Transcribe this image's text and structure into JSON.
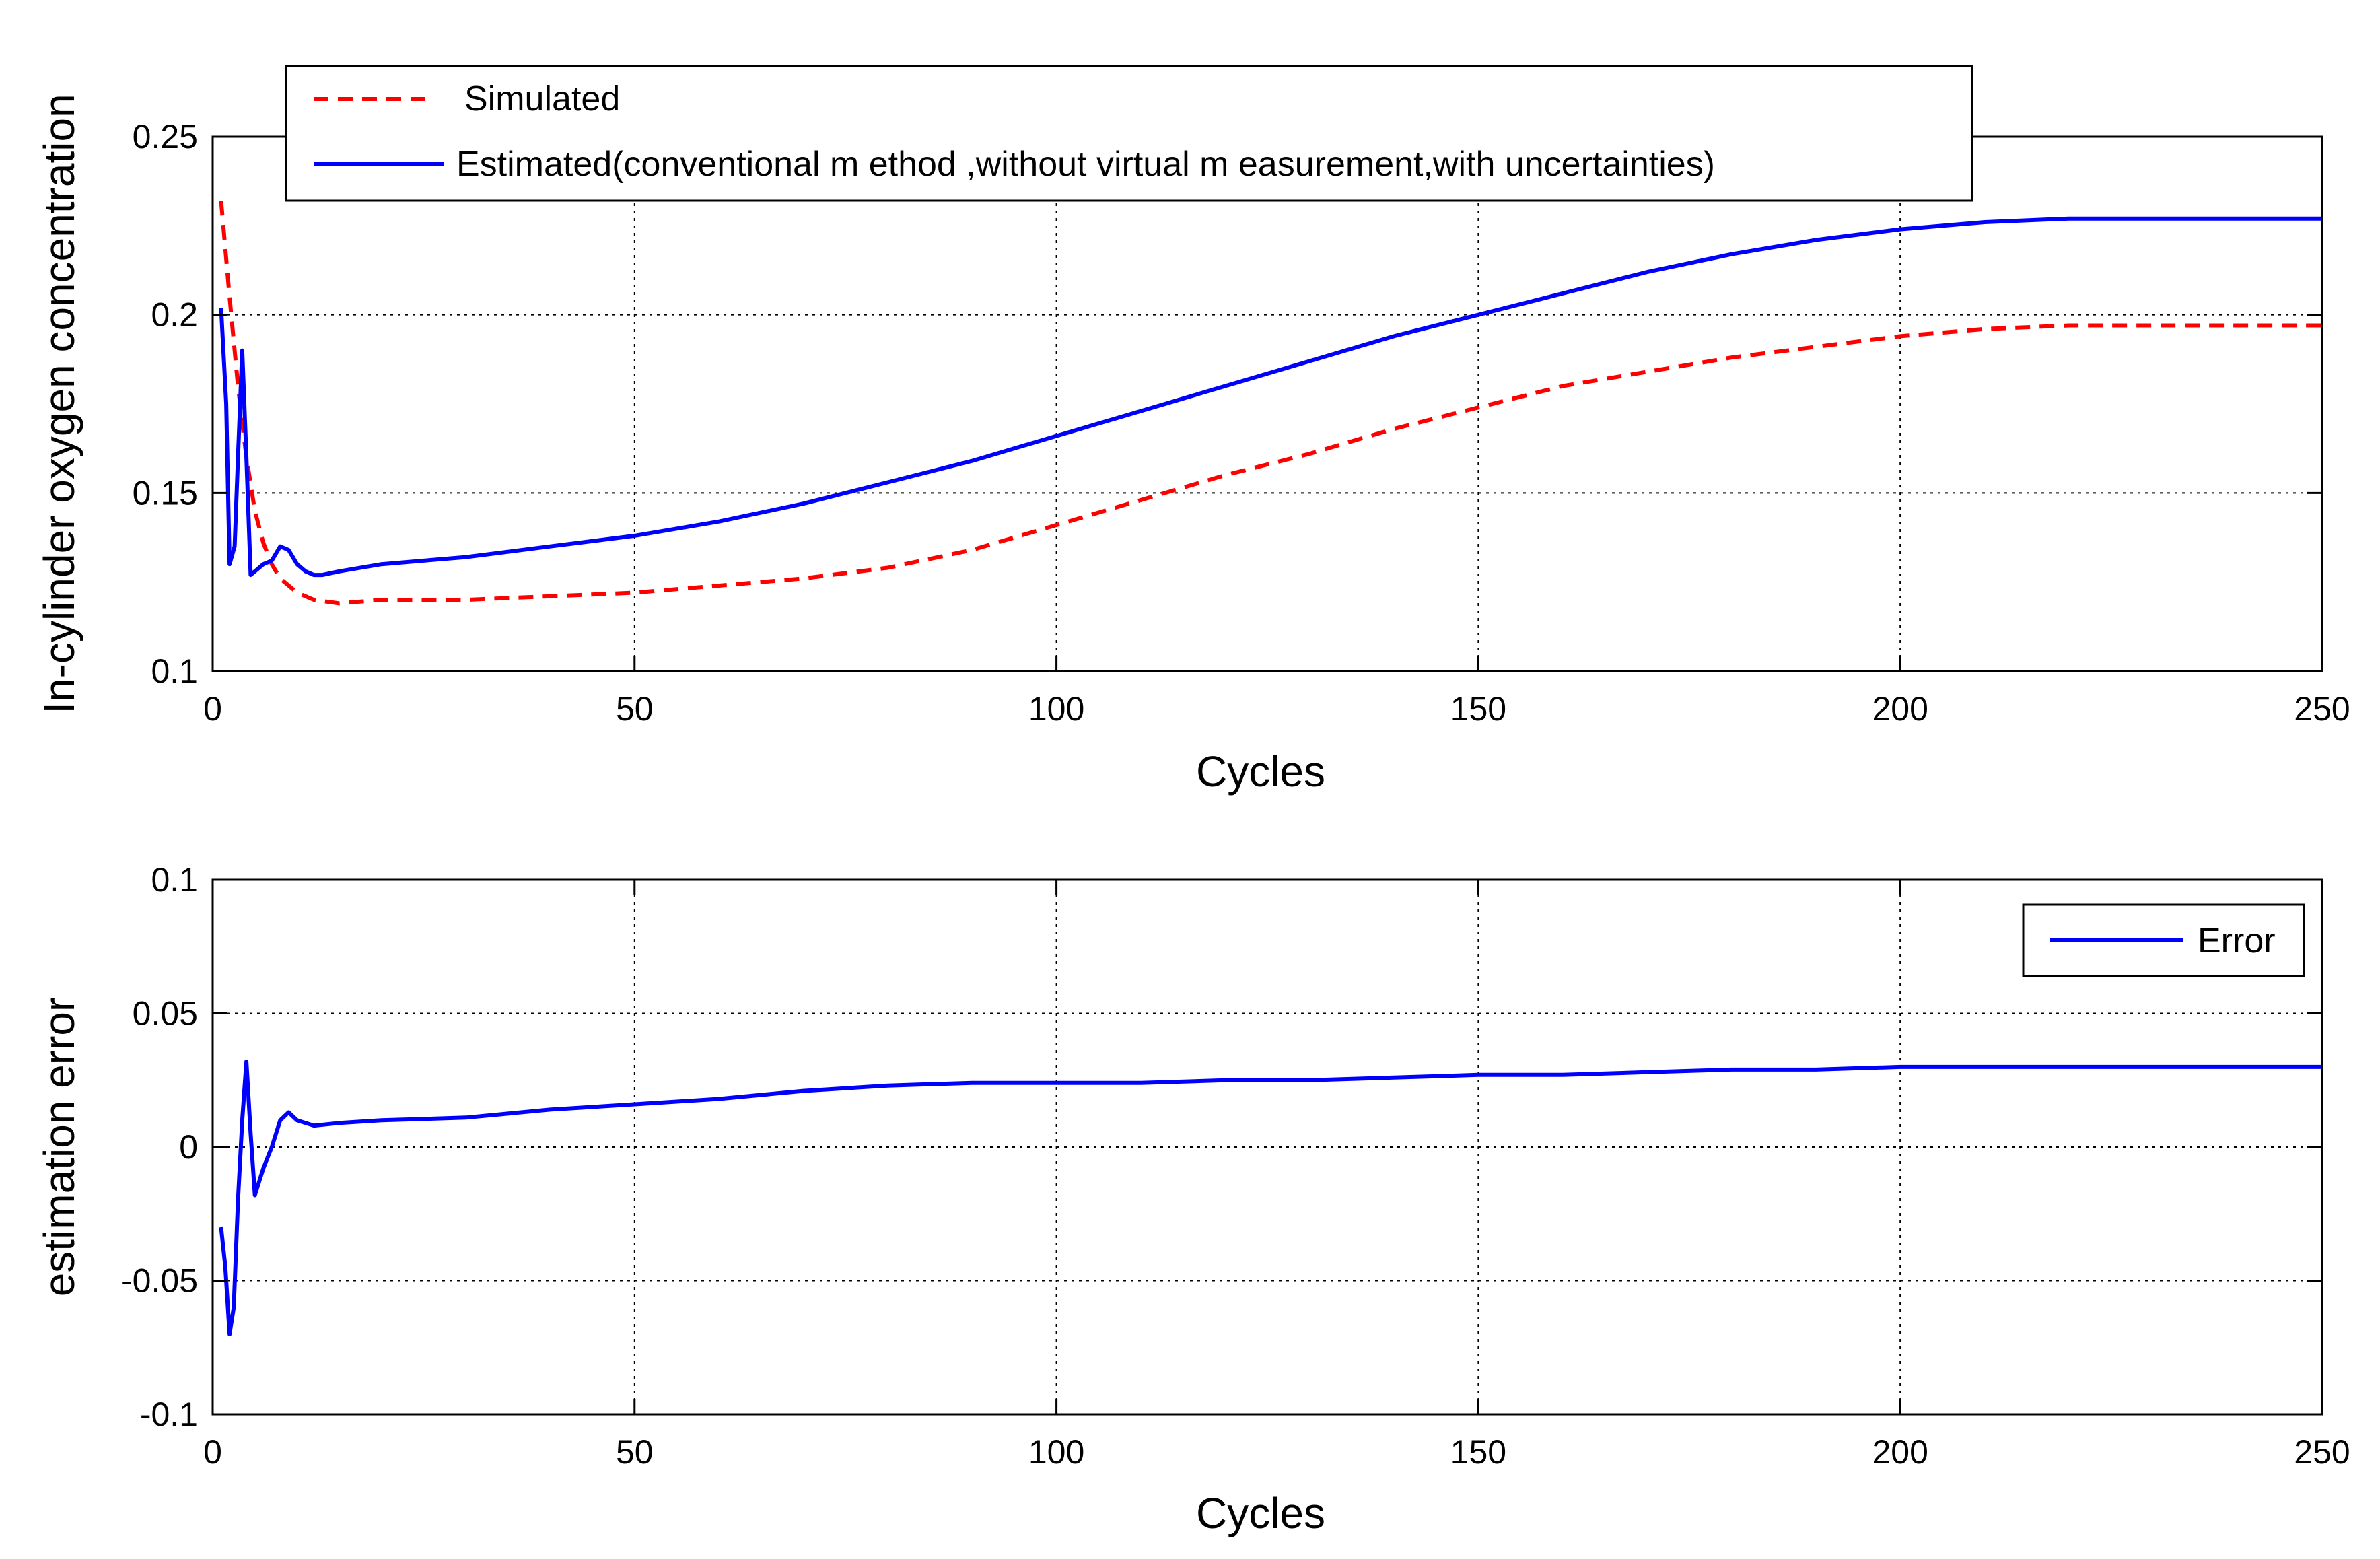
{
  "chart_data": [
    {
      "type": "line",
      "title": "",
      "xlabel": "Cycles",
      "ylabel": "In-cylinder oxygen concentration",
      "xlim": [
        0,
        250
      ],
      "ylim": [
        0.1,
        0.25
      ],
      "xticks": [
        0,
        50,
        100,
        150,
        200,
        250
      ],
      "yticks": [
        0.1,
        0.15,
        0.2,
        0.25
      ],
      "xtick_labels": [
        "0",
        "50",
        "100",
        "150",
        "200",
        "250"
      ],
      "ytick_labels": [
        "0.1",
        "0.15",
        "0.2",
        "0.25"
      ],
      "grid": true,
      "legend_position": "top",
      "series": [
        {
          "name": "Simulated",
          "color": "#ff0000",
          "style": "dashed",
          "x": [
            1,
            2,
            3,
            4,
            5,
            6,
            7,
            8,
            10,
            12,
            15,
            20,
            30,
            40,
            50,
            60,
            70,
            80,
            90,
            100,
            110,
            120,
            130,
            140,
            150,
            160,
            170,
            180,
            190,
            200,
            210,
            220,
            230,
            240,
            250
          ],
          "y": [
            0.232,
            0.205,
            0.18,
            0.16,
            0.145,
            0.136,
            0.13,
            0.126,
            0.122,
            0.12,
            0.119,
            0.12,
            0.12,
            0.121,
            0.122,
            0.124,
            0.126,
            0.129,
            0.134,
            0.141,
            0.148,
            0.155,
            0.161,
            0.168,
            0.174,
            0.18,
            0.184,
            0.188,
            0.191,
            0.194,
            0.196,
            0.197,
            0.197,
            0.197,
            0.197
          ]
        },
        {
          "name": "Estimated(conventional m ethod ,without virtual m easurement,with uncertainties)",
          "color": "#0000ff",
          "style": "solid",
          "x": [
            1,
            1.6,
            2,
            2.6,
            3,
            3.5,
            4,
            4.5,
            5,
            6,
            7,
            8,
            9,
            10,
            11,
            12,
            13,
            15,
            20,
            25,
            30,
            40,
            50,
            60,
            70,
            80,
            90,
            100,
            110,
            120,
            130,
            140,
            150,
            160,
            170,
            180,
            190,
            200,
            210,
            220,
            230,
            240,
            250
          ],
          "y": [
            0.202,
            0.175,
            0.13,
            0.135,
            0.16,
            0.19,
            0.16,
            0.127,
            0.128,
            0.13,
            0.131,
            0.135,
            0.134,
            0.13,
            0.128,
            0.127,
            0.127,
            0.128,
            0.13,
            0.131,
            0.132,
            0.135,
            0.138,
            0.142,
            0.147,
            0.153,
            0.159,
            0.166,
            0.173,
            0.18,
            0.187,
            0.194,
            0.2,
            0.206,
            0.212,
            0.217,
            0.221,
            0.224,
            0.226,
            0.227,
            0.227,
            0.227,
            0.227
          ]
        }
      ]
    },
    {
      "type": "line",
      "title": "",
      "xlabel": "Cycles",
      "ylabel": "estimation error",
      "xlim": [
        0,
        250
      ],
      "ylim": [
        -0.1,
        0.1
      ],
      "xticks": [
        0,
        50,
        100,
        150,
        200,
        250
      ],
      "yticks": [
        -0.1,
        -0.05,
        0,
        0.05,
        0.1
      ],
      "xtick_labels": [
        "0",
        "50",
        "100",
        "150",
        "200",
        "250"
      ],
      "ytick_labels": [
        "-0.1",
        "-0.05",
        "0",
        "0.05",
        "0.1"
      ],
      "grid": true,
      "legend_position": "top-right",
      "series": [
        {
          "name": "Error",
          "color": "#0000ff",
          "style": "solid",
          "x": [
            1,
            1.5,
            2,
            2.5,
            3,
            3.5,
            4,
            4.5,
            5,
            6,
            7,
            8,
            9,
            10,
            12,
            15,
            20,
            30,
            40,
            50,
            60,
            70,
            80,
            90,
            100,
            110,
            120,
            130,
            140,
            150,
            160,
            170,
            180,
            190,
            200,
            210,
            220,
            230,
            240,
            250
          ],
          "y": [
            -0.03,
            -0.045,
            -0.07,
            -0.06,
            -0.02,
            0.01,
            0.032,
            0.005,
            -0.018,
            -0.008,
            0.0,
            0.01,
            0.013,
            0.01,
            0.008,
            0.009,
            0.01,
            0.011,
            0.014,
            0.016,
            0.018,
            0.021,
            0.023,
            0.024,
            0.024,
            0.024,
            0.025,
            0.025,
            0.026,
            0.027,
            0.027,
            0.028,
            0.029,
            0.029,
            0.03,
            0.03,
            0.03,
            0.03,
            0.03,
            0.03
          ]
        }
      ]
    }
  ]
}
